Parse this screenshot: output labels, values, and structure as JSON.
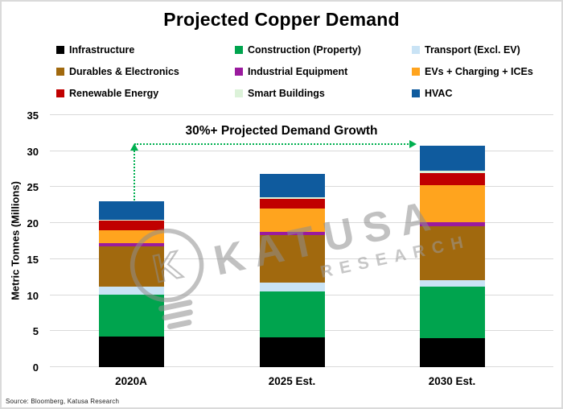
{
  "title": "Projected Copper Demand",
  "annotation": {
    "text": "30%+ Projected Demand Growth",
    "arrow_color": "#00B050"
  },
  "watermark": {
    "brand": "KATUSA",
    "sub": "RESEARCH",
    "color": "#8F8F8F"
  },
  "source_note": "Source: Bloomberg, Katusa Research",
  "chart_data": {
    "type": "bar",
    "stacked": true,
    "title": "Projected Copper Demand",
    "ylabel": "Metric Tonnes (Millions)",
    "ylim": [
      0,
      35
    ],
    "yticks": [
      0,
      5,
      10,
      15,
      20,
      25,
      30,
      35
    ],
    "grid": true,
    "gridline_color": "#D9D9D9",
    "legend_position": "top",
    "categories": [
      "2020A",
      "2025 Est.",
      "2030 Est."
    ],
    "series": [
      {
        "name": "Infrastructure",
        "color": "#000000",
        "values": [
          4.3,
          4.1,
          4.0
        ]
      },
      {
        "name": "Construction (Property)",
        "color": "#00A44E",
        "values": [
          5.8,
          6.4,
          7.2
        ]
      },
      {
        "name": "Transport (Excl. EV)",
        "color": "#C9E3F5",
        "values": [
          1.1,
          1.3,
          0.9
        ]
      },
      {
        "name": "Durables & Electronics",
        "color": "#A1690E",
        "values": [
          5.6,
          6.5,
          7.5
        ]
      },
      {
        "name": "Industrial Equipment",
        "color": "#9A1B9E",
        "values": [
          0.4,
          0.5,
          0.5
        ]
      },
      {
        "name": "EVs + Charging + ICEs",
        "color": "#FFA41E",
        "values": [
          1.8,
          3.2,
          5.2
        ]
      },
      {
        "name": "Renewable Energy",
        "color": "#C00000",
        "values": [
          1.4,
          1.4,
          1.7
        ]
      },
      {
        "name": "Smart Buildings",
        "color": "#DCF2D9",
        "values": [
          0.1,
          0.2,
          0.3
        ]
      },
      {
        "name": "HVAC",
        "color": "#0F5B9E",
        "values": [
          2.5,
          3.3,
          3.5
        ]
      }
    ],
    "totals": [
      23.0,
      26.9,
      30.8
    ]
  }
}
